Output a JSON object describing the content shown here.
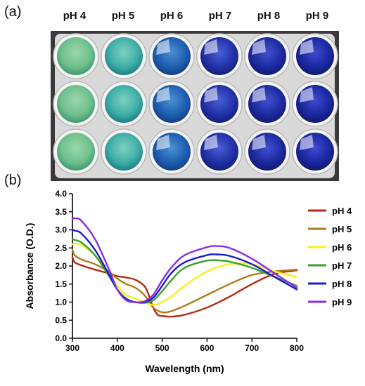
{
  "panel_a": {
    "label": "(a)",
    "columns": [
      {
        "label": "pH 4",
        "top": "#9ad6a8",
        "mid": "#6fc08f",
        "edge": "#3f9a70"
      },
      {
        "label": "pH 5",
        "top": "#7fd0c2",
        "mid": "#3faea6",
        "edge": "#1f7f86"
      },
      {
        "label": "pH 6",
        "top": "#4b8fd0",
        "mid": "#1f5fb0",
        "edge": "#153f86"
      },
      {
        "label": "pH 7",
        "top": "#4a5ed6",
        "mid": "#2231a8",
        "edge": "#141f78"
      },
      {
        "label": "pH 8",
        "top": "#4350d0",
        "mid": "#1e2aa0",
        "edge": "#121b72"
      },
      {
        "label": "pH 9",
        "top": "#3f4acd",
        "mid": "#1b27a0",
        "edge": "#11196e"
      }
    ],
    "rows": 3,
    "plate_color": "#d9d9d9"
  },
  "panel_b": {
    "label": "(b)"
  },
  "chart_data": {
    "type": "line",
    "xlabel": "Wavelength (nm)",
    "ylabel": "Absorbance (O.D.)",
    "xlim": [
      300,
      800
    ],
    "ylim": [
      0.0,
      4.0
    ],
    "xticks": [
      300,
      400,
      500,
      600,
      700,
      800
    ],
    "xtick_labels": [
      "300",
      "400",
      "500",
      "600",
      "700",
      "800"
    ],
    "yticks": [
      0.0,
      0.5,
      1.0,
      1.5,
      2.0,
      2.5,
      3.0,
      3.5,
      4.0
    ],
    "ytick_labels": [
      "0.0",
      "0.5",
      "1.0",
      "1.5",
      "2.0",
      "2.5",
      "3.0",
      "3.5",
      "4.0"
    ],
    "grid": false,
    "legend_position": "right",
    "series": [
      {
        "name": "pH 4",
        "color": "#b22a12",
        "x": [
          300,
          305,
          320,
          350,
          380,
          400,
          420,
          440,
          460,
          470,
          480,
          490,
          500,
          520,
          550,
          600,
          650,
          700,
          750,
          800
        ],
        "y": [
          2.25,
          2.1,
          2.02,
          1.9,
          1.8,
          1.72,
          1.68,
          1.62,
          1.45,
          1.2,
          0.85,
          0.65,
          0.62,
          0.6,
          0.65,
          0.85,
          1.15,
          1.5,
          1.78,
          1.88
        ]
      },
      {
        "name": "pH 5",
        "color": "#b07a18",
        "x": [
          300,
          305,
          320,
          350,
          380,
          400,
          420,
          440,
          460,
          480,
          500,
          520,
          550,
          600,
          650,
          700,
          750,
          800
        ],
        "y": [
          2.45,
          2.3,
          2.18,
          2.05,
          1.85,
          1.65,
          1.5,
          1.4,
          1.2,
          0.85,
          0.72,
          0.75,
          0.9,
          1.2,
          1.5,
          1.75,
          1.85,
          1.9
        ]
      },
      {
        "name": "pH 6",
        "color": "#f2f21a",
        "x": [
          300,
          305,
          320,
          350,
          380,
          400,
          420,
          440,
          460,
          480,
          500,
          520,
          550,
          600,
          650,
          700,
          750,
          800
        ],
        "y": [
          2.6,
          2.62,
          2.58,
          2.3,
          1.8,
          1.45,
          1.2,
          1.1,
          1.0,
          0.92,
          1.0,
          1.15,
          1.45,
          1.85,
          2.05,
          2.05,
          1.85,
          1.7
        ]
      },
      {
        "name": "pH 7",
        "color": "#3aa12a",
        "x": [
          300,
          305,
          320,
          350,
          380,
          400,
          420,
          440,
          460,
          480,
          500,
          520,
          550,
          600,
          630,
          650,
          700,
          750,
          800
        ],
        "y": [
          2.75,
          2.72,
          2.65,
          2.3,
          1.75,
          1.35,
          1.1,
          1.0,
          0.98,
          1.05,
          1.3,
          1.6,
          1.95,
          2.15,
          2.15,
          2.12,
          1.95,
          1.7,
          1.45
        ]
      },
      {
        "name": "pH 8",
        "color": "#1a1ad6",
        "x": [
          300,
          305,
          320,
          350,
          380,
          400,
          420,
          440,
          460,
          480,
          500,
          520,
          550,
          600,
          620,
          650,
          700,
          750,
          800
        ],
        "y": [
          3.0,
          2.98,
          2.9,
          2.45,
          1.8,
          1.35,
          1.08,
          1.0,
          1.0,
          1.12,
          1.45,
          1.8,
          2.1,
          2.3,
          2.32,
          2.28,
          2.05,
          1.7,
          1.35
        ]
      },
      {
        "name": "pH 9",
        "color": "#8a2be8",
        "x": [
          300,
          305,
          320,
          350,
          380,
          400,
          420,
          440,
          460,
          480,
          500,
          520,
          550,
          600,
          620,
          650,
          700,
          750,
          800
        ],
        "y": [
          3.3,
          3.32,
          3.25,
          2.75,
          1.95,
          1.35,
          1.05,
          1.0,
          1.02,
          1.2,
          1.6,
          1.95,
          2.3,
          2.52,
          2.55,
          2.5,
          2.2,
          1.8,
          1.4
        ]
      }
    ]
  }
}
